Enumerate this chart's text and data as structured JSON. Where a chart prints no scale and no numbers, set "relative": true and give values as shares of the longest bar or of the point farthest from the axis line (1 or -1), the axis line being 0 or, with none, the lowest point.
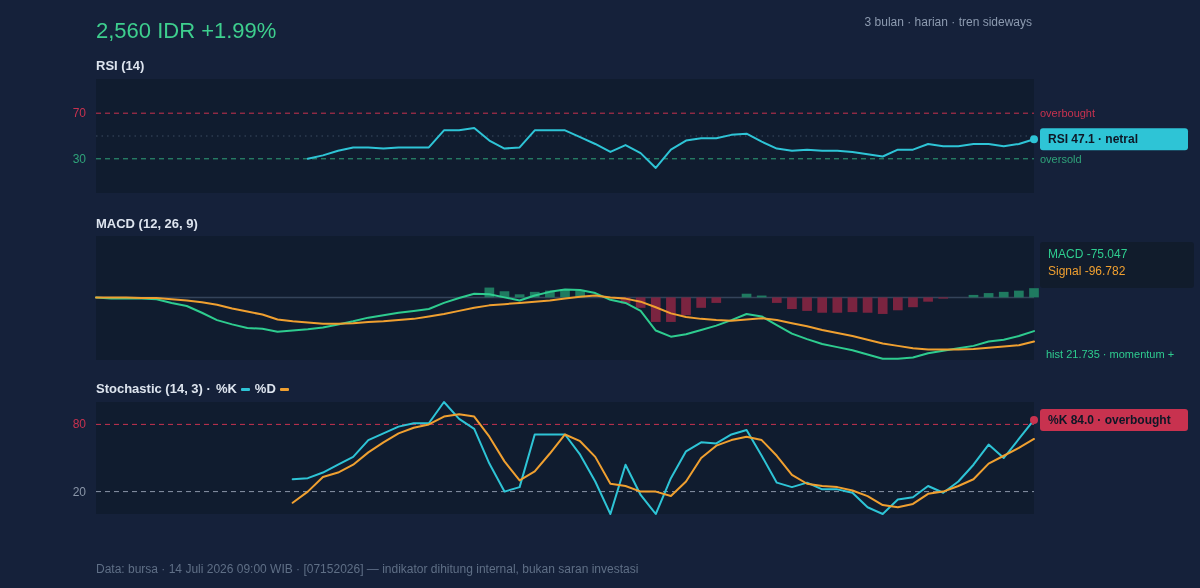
{
  "chart_data": [
    {
      "type": "other",
      "title": "2,560 IDR +1.99%",
      "subtitle": "3 bulan · harian · tren sideways",
      "annotations": [
        "Data: bursa · 14 Juli 2026 09:00 WIB · [07152026] — indikator dihitung internal, bukan saran investasi"
      ]
    },
    {
      "type": "line",
      "title": "RSI (14)",
      "categories": [
        null,
        null,
        null,
        null,
        null,
        null,
        null,
        null,
        null,
        null,
        null,
        null,
        null,
        null,
        null,
        null,
        null,
        null,
        null,
        null,
        null,
        null,
        null,
        null,
        null,
        null,
        null,
        null,
        null,
        null,
        null,
        null,
        null,
        null,
        null,
        null,
        null,
        null,
        null,
        null,
        null,
        null,
        null,
        null,
        null,
        null,
        null,
        null,
        null,
        null,
        null,
        null,
        null,
        null,
        null,
        null,
        null,
        null,
        null,
        null,
        null,
        null,
        null
      ],
      "series": [
        {
          "color": "#2ec4d6",
          "values": [
            null,
            null,
            null,
            null,
            null,
            null,
            null,
            null,
            null,
            null,
            null,
            null,
            null,
            null,
            30,
            33,
            37,
            40,
            40,
            39,
            40,
            40,
            40,
            55,
            55,
            57,
            46,
            39,
            40,
            55,
            55,
            55,
            49,
            43,
            36,
            42,
            35,
            22,
            38,
            46,
            48,
            48,
            51,
            52,
            45,
            39,
            37,
            38,
            37,
            37,
            36,
            34,
            32,
            38,
            38,
            43,
            41,
            41,
            43,
            43,
            41,
            43,
            47.1
          ]
        }
      ],
      "ylim": [
        0,
        100
      ],
      "yticks": [
        30,
        70
      ],
      "ref_lines": [
        {
          "axis": "y",
          "value": 70,
          "label": "overbought",
          "color": "#c8324f",
          "line_style": "dashed"
        },
        {
          "axis": "y",
          "value": 30,
          "label": "oversold",
          "color": "#2fa37a",
          "line_style": "dashed"
        },
        {
          "axis": "y",
          "value": 50,
          "color": "#3a4a60",
          "line_style": "dotted"
        }
      ],
      "annotations": [
        "RSI 47.1 · netral"
      ]
    },
    {
      "type": "line",
      "title": "MACD (12, 26, 9)",
      "relative": true,
      "categories": [
        null,
        null,
        null,
        null,
        null,
        null,
        null,
        null,
        null,
        null,
        null,
        null,
        null,
        null,
        null,
        null,
        null,
        null,
        null,
        null,
        null,
        null,
        null,
        null,
        null,
        null,
        null,
        null,
        null,
        null,
        null,
        null,
        null,
        null,
        null,
        null,
        null,
        null,
        null,
        null,
        null,
        null,
        null,
        null,
        null,
        null,
        null,
        null,
        null,
        null,
        null,
        null,
        null,
        null,
        null,
        null,
        null,
        null,
        null,
        null,
        null,
        null,
        null
      ],
      "series": [
        {
          "type": "bar",
          "colors": [
            null,
            null,
            null,
            null,
            null,
            null,
            null,
            null,
            null,
            null,
            null,
            null,
            null,
            null,
            null,
            null,
            null,
            null,
            null,
            null,
            null,
            null,
            null,
            null,
            null,
            null,
            "#1f7a60",
            "#1f7a60",
            "#1f7a60",
            "#1f7a60",
            "#1f7a60",
            "#1f7a60",
            "#1f7a60",
            null,
            null,
            "#7a2440",
            "#7a2440",
            "#7a2440",
            "#7a2440",
            "#7a2440",
            "#7a2440",
            "#7a2440",
            null,
            "#1f7a60",
            "#1f7a60",
            "#7a2440",
            "#7a2440",
            "#7a2440",
            "#7a2440",
            "#7a2440",
            "#7a2440",
            "#7a2440",
            "#7a2440",
            "#7a2440",
            "#7a2440",
            "#7a2440",
            "#7a2440",
            null,
            "#1f7a60",
            "#1f7a60",
            "#1f7a60",
            "#1f7a60",
            "#1f7a60"
          ],
          "values": [
            null,
            null,
            null,
            null,
            null,
            null,
            null,
            null,
            null,
            null,
            null,
            null,
            null,
            null,
            null,
            null,
            null,
            null,
            null,
            null,
            null,
            null,
            null,
            null,
            null,
            null,
            0.16,
            0.1,
            0.05,
            0.09,
            0.11,
            0.13,
            0.11,
            null,
            null,
            -0.1,
            -0.17,
            -0.4,
            -0.4,
            -0.29,
            -0.17,
            -0.09,
            null,
            0.06,
            0.03,
            -0.09,
            -0.19,
            -0.22,
            -0.25,
            -0.25,
            -0.24,
            -0.25,
            -0.27,
            -0.21,
            -0.16,
            -0.07,
            -0.02,
            null,
            0.04,
            0.07,
            0.09,
            0.11,
            0.15
          ]
        },
        {
          "type": "line",
          "color": "#2ecc8f",
          "values": [
            0,
            -0.02,
            -0.02,
            -0.02,
            -0.03,
            -0.09,
            -0.14,
            -0.25,
            -0.37,
            -0.44,
            -0.5,
            -0.51,
            -0.56,
            -0.54,
            -0.52,
            -0.49,
            -0.44,
            -0.39,
            -0.33,
            -0.29,
            -0.25,
            -0.22,
            -0.19,
            -0.09,
            -0.01,
            0.06,
            0.05,
            0,
            -0.05,
            0.03,
            0.09,
            0.13,
            0.12,
            0.07,
            -0.04,
            -0.09,
            -0.22,
            -0.54,
            -0.64,
            -0.6,
            -0.53,
            -0.46,
            -0.37,
            -0.27,
            -0.31,
            -0.45,
            -0.59,
            -0.68,
            -0.76,
            -0.81,
            -0.86,
            -0.93,
            -1,
            -1,
            -0.98,
            -0.91,
            -0.87,
            -0.83,
            -0.79,
            -0.72,
            -0.69,
            -0.63,
            -0.55
          ]
        },
        {
          "type": "line",
          "color": "#f0a030",
          "values": [
            0,
            0,
            0,
            -0.01,
            -0.01,
            -0.03,
            -0.05,
            -0.08,
            -0.12,
            -0.18,
            -0.23,
            -0.28,
            -0.36,
            -0.39,
            -0.41,
            -0.43,
            -0.43,
            -0.42,
            -0.4,
            -0.39,
            -0.37,
            -0.35,
            -0.31,
            -0.27,
            -0.22,
            -0.17,
            -0.13,
            -0.11,
            -0.09,
            -0.07,
            -0.05,
            -0.02,
            0.01,
            0.03,
            0,
            -0.02,
            -0.07,
            -0.16,
            -0.26,
            -0.32,
            -0.35,
            -0.37,
            -0.38,
            -0.36,
            -0.34,
            -0.37,
            -0.42,
            -0.47,
            -0.53,
            -0.58,
            -0.63,
            -0.69,
            -0.75,
            -0.79,
            -0.83,
            -0.85,
            -0.85,
            -0.85,
            -0.84,
            -0.82,
            -0.8,
            -0.78,
            -0.72
          ]
        }
      ],
      "annotations": [
        "MACD -75.047",
        "Signal -96.782",
        "hist 21.735 · momentum +"
      ]
    },
    {
      "type": "line",
      "title": "Stochastic (14, 3) ·",
      "legend": "top left",
      "categories": [
        null,
        null,
        null,
        null,
        null,
        null,
        null,
        null,
        null,
        null,
        null,
        null,
        null,
        null,
        null,
        null,
        null,
        null,
        null,
        null,
        null,
        null,
        null,
        null,
        null,
        null,
        null,
        null,
        null,
        null,
        null,
        null,
        null,
        null,
        null,
        null,
        null,
        null,
        null,
        null,
        null,
        null,
        null,
        null,
        null,
        null,
        null,
        null,
        null,
        null,
        null,
        null,
        null,
        null,
        null,
        null,
        null,
        null,
        null,
        null,
        null,
        null,
        null
      ],
      "series": [
        {
          "name": "%K",
          "color": "#2ec4d6",
          "values": [
            null,
            null,
            null,
            null,
            null,
            null,
            null,
            null,
            null,
            null,
            null,
            null,
            null,
            31,
            32,
            37,
            44,
            51,
            66,
            72,
            78,
            81,
            81,
            100,
            85,
            76,
            45,
            20,
            24,
            71,
            71,
            71,
            53,
            29,
            0,
            44,
            17,
            0,
            32,
            56,
            64,
            63,
            71,
            75,
            52,
            28,
            24,
            28,
            22,
            22,
            19,
            6,
            0,
            13,
            15,
            25,
            19,
            29,
            44,
            62,
            50,
            67,
            84.0
          ]
        },
        {
          "name": "%D",
          "color": "#f0a030",
          "values": [
            null,
            null,
            null,
            null,
            null,
            null,
            null,
            null,
            null,
            null,
            null,
            null,
            null,
            10,
            20,
            33,
            37,
            44,
            55,
            64,
            72,
            77,
            80,
            87,
            89,
            87,
            69,
            47,
            30,
            38,
            54,
            71,
            65,
            51,
            27,
            25,
            20,
            20,
            16,
            29,
            50,
            61,
            66,
            69,
            66,
            52,
            35,
            27,
            25,
            24,
            21,
            16,
            8,
            6,
            9,
            18,
            20,
            25,
            31,
            45,
            52,
            59,
            67
          ]
        }
      ],
      "ylim": [
        0,
        100
      ],
      "yticks": [
        20,
        80
      ],
      "ref_lines": [
        {
          "axis": "y",
          "value": 80,
          "color": "#c8324f",
          "line_style": "dashed"
        },
        {
          "axis": "y",
          "value": 20,
          "color": "#8a96a8",
          "line_style": "dashed"
        }
      ],
      "annotations": [
        "%K 84.0 · overbought"
      ]
    }
  ]
}
